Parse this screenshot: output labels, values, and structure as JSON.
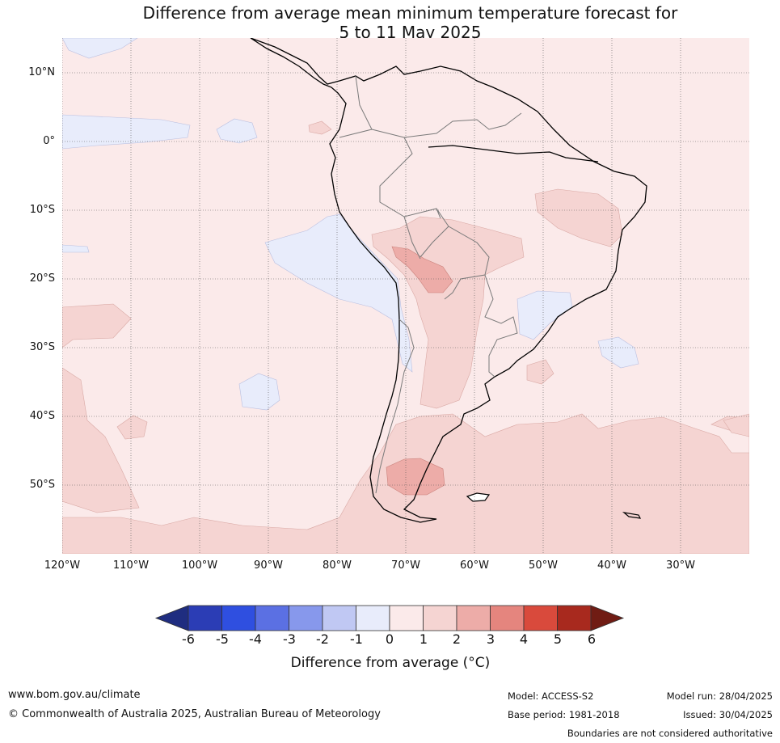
{
  "title": {
    "line1": "Difference from average mean minimum temperature forecast for",
    "line2": "5 to 11 May 2025"
  },
  "lat_labels": [
    "10°N",
    "0°",
    "10°S",
    "20°S",
    "30°S",
    "40°S",
    "50°S"
  ],
  "lon_labels": [
    "120°W",
    "110°W",
    "100°W",
    "90°W",
    "80°W",
    "70°W",
    "60°W",
    "50°W",
    "40°W",
    "30°W"
  ],
  "colorbar": {
    "ticks": [
      "-6",
      "-5",
      "-4",
      "-3",
      "-2",
      "-1",
      "0",
      "1",
      "2",
      "3",
      "4",
      "5",
      "6"
    ],
    "colors": [
      "#1f2d80",
      "#2b3db5",
      "#2f4fe0",
      "#5b70e3",
      "#8798ec",
      "#c0c8f3",
      "#e8ecfb",
      "#fbeaea",
      "#f5d4d2",
      "#edaca8",
      "#e5857e",
      "#d94a3c",
      "#a8291e",
      "#701c14"
    ],
    "label": "Difference from average (°C)"
  },
  "colors": {
    "land_sea_bg": "#fbeaea",
    "warm1": "#f5d4d2",
    "warm2": "#edaca8",
    "cool1": "#e8ecfb"
  },
  "footer": {
    "url": "www.bom.gov.au/climate",
    "copyright": "© Commonwealth of Australia 2025, Australian Bureau of Meteorology",
    "model": "Model: ACCESS-S2",
    "base_period": "Base period: 1981-2018",
    "model_run": "Model run: 28/04/2025",
    "issued": "Issued: 30/04/2025",
    "disclaimer": "Boundaries are not considered authoritative"
  }
}
